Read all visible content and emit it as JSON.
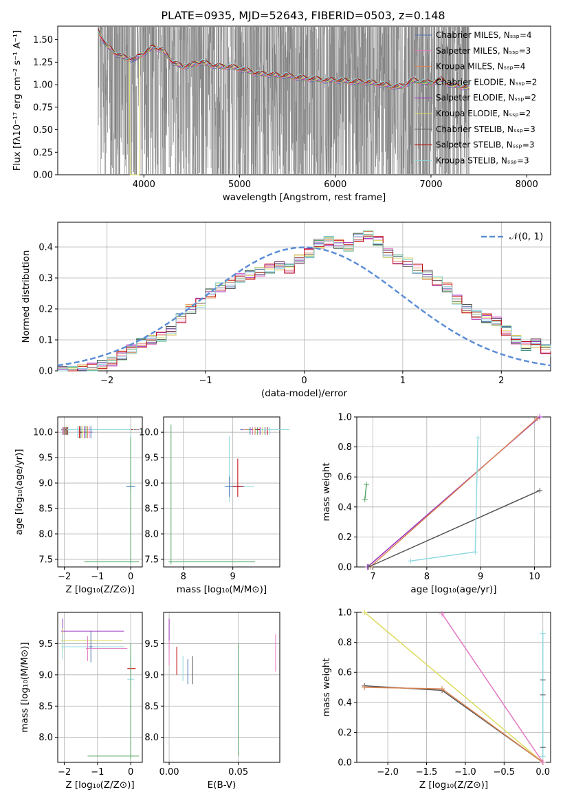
{
  "title": "PLATE=0935, MJD=52643, FIBERID=0503, z=0.148",
  "palette": {
    "chabrier_miles": "#4c72b0",
    "salpeter_miles": "#e377c2",
    "kroupa_miles": "#dd8452",
    "chabrier_elodie": "#55a868",
    "salpeter_elodie": "#9b30c0",
    "kroupa_elodie": "#dbdb5d",
    "chabrier_stelib": "#555555",
    "salpeter_stelib": "#c00000",
    "kroupa_stelib": "#8fd8e0",
    "data_spectrum": "#808080",
    "normal_curve": "#5b8dd6"
  },
  "chart_data": [
    {
      "id": "spectrum",
      "type": "line",
      "xlabel": "wavelength [Angstrom, rest frame]",
      "ylabel": "Flux [fλ10⁻¹⁷ erg cm⁻² s⁻¹ A⁻¹]",
      "xlim": [
        3100,
        8250
      ],
      "ylim": [
        0,
        1.65
      ],
      "xticks": [
        4000,
        5000,
        6000,
        7000,
        8000
      ],
      "yticks": [
        "0.00",
        "0.25",
        "0.50",
        "0.75",
        "1.00",
        "1.25",
        "1.50"
      ],
      "data_range": [
        3520,
        7400
      ],
      "legend": [
        "Chabrier MILES, Nₛₛₚ=4",
        "Salpeter MILES, Nₛₛₚ=3",
        "Kroupa MILES, Nₛₛₚ=4",
        "Chabrier ELODIE, Nₛₛₚ=2",
        "Salpeter ELODIE, Nₛₛₚ=2",
        "Kroupa ELODIE, Nₛₛₚ=2",
        "Chabrier STELIB, Nₛₛₚ=3",
        "Salpeter STELIB, Nₛₛₚ=3",
        "Kroupa STELIB, Nₛₛₚ=3"
      ],
      "model_curve": {
        "x": [
          3520,
          3600,
          3700,
          3800,
          3900,
          4000,
          4100,
          4200,
          4300,
          4400,
          4500,
          4600,
          4700,
          4800,
          4900,
          5000,
          5100,
          5200,
          5300,
          5400,
          5500,
          5600,
          5700,
          5800,
          5900,
          6000,
          6100,
          6200,
          6300,
          6400,
          6500,
          6600,
          6700,
          6800,
          6900,
          7000,
          7100,
          7200,
          7300,
          7400
        ],
        "y": [
          1.6,
          1.45,
          1.35,
          1.3,
          1.28,
          1.35,
          1.42,
          1.38,
          1.25,
          1.2,
          1.22,
          1.25,
          1.22,
          1.2,
          1.2,
          1.18,
          1.15,
          1.12,
          1.12,
          1.1,
          1.1,
          1.08,
          1.07,
          1.06,
          1.05,
          1.05,
          1.04,
          1.03,
          1.03,
          1.02,
          1.0,
          0.98,
          0.98,
          1.05,
          1.03,
          1.02,
          1.06,
          1.0,
          0.98,
          0.97
        ]
      }
    },
    {
      "id": "residuals",
      "type": "line",
      "xlabel": "(data-model)/error",
      "ylabel": "Normed distribution",
      "xlim": [
        -2.5,
        2.5
      ],
      "ylim": [
        0,
        0.48
      ],
      "xticks": [
        "−2",
        "−1",
        "0",
        "1",
        "2"
      ],
      "yticks": [
        "0.0",
        "0.1",
        "0.2",
        "0.3",
        "0.4"
      ],
      "bin_width": 0.1,
      "bin_start": -2.5,
      "histogram": [
        0.0,
        0.0,
        0.005,
        0.01,
        0.02,
        0.03,
        0.05,
        0.07,
        0.09,
        0.1,
        0.11,
        0.13,
        0.17,
        0.2,
        0.22,
        0.25,
        0.27,
        0.28,
        0.3,
        0.31,
        0.32,
        0.33,
        0.34,
        0.33,
        0.36,
        0.38,
        0.41,
        0.42,
        0.41,
        0.4,
        0.43,
        0.44,
        0.42,
        0.38,
        0.36,
        0.35,
        0.33,
        0.31,
        0.29,
        0.27,
        0.23,
        0.2,
        0.18,
        0.17,
        0.16,
        0.13,
        0.1,
        0.08,
        0.09,
        0.07,
        0.06
      ],
      "legend": "𝒩(0, 1)"
    },
    {
      "id": "age-vs-z",
      "type": "scatter",
      "xlabel": "Z [log₁₀(Z/Z⊙)]",
      "ylabel": "age  [log₁₀(age/yr)]",
      "xlim": [
        -2.2,
        0.35
      ],
      "ylim": [
        7.35,
        10.3
      ],
      "xticks": [
        "−2",
        "−1",
        "0"
      ],
      "yticks": [
        "7.5",
        "8.0",
        "8.5",
        "9.0",
        "9.5",
        "10.0"
      ]
    },
    {
      "id": "age-vs-mass",
      "type": "scatter",
      "xlabel": "mass [log₁₀(M/M⊙)]",
      "xlim": [
        7.6,
        9.95
      ],
      "ylim": [
        7.35,
        10.3
      ],
      "xticks": [
        "8",
        "9"
      ],
      "yticks": [
        "7.5",
        "8.0",
        "8.5",
        "9.0",
        "9.5",
        "10.0"
      ]
    },
    {
      "id": "weight-vs-age",
      "type": "line",
      "xlabel": "age  [log₁₀(age/yr)]",
      "ylabel": "mass weight",
      "xlim": [
        6.7,
        10.3
      ],
      "ylim": [
        0,
        1.0
      ],
      "xticks": [
        "7",
        "8",
        "9",
        "10"
      ],
      "yticks": [
        "0.0",
        "0.2",
        "0.4",
        "0.6",
        "0.8",
        "1.0"
      ]
    },
    {
      "id": "mass-vs-z",
      "type": "scatter",
      "xlabel": "Z [log₁₀(Z/Z⊙)]",
      "ylabel": "mass [log₁₀(M/M⊙)]",
      "xlim": [
        -2.2,
        0.35
      ],
      "ylim": [
        7.6,
        10.0
      ],
      "xticks": [
        "−2",
        "−1",
        "0"
      ],
      "yticks": [
        "8.0",
        "8.5",
        "9.0",
        "9.5"
      ]
    },
    {
      "id": "mass-vs-ebv",
      "type": "scatter",
      "xlabel": "E(B-V)",
      "xlim": [
        -0.004,
        0.08
      ],
      "ylim": [
        7.6,
        10.0
      ],
      "xticks": [
        "0.00",
        "0.05"
      ],
      "yticks": [
        "8.0",
        "8.5",
        "9.0",
        "9.5"
      ]
    },
    {
      "id": "weight-vs-z",
      "type": "line",
      "xlabel": "Z [log₁₀(Z/Z⊙)]",
      "ylabel": "mass weight",
      "xlim": [
        -2.4,
        0.1
      ],
      "ylim": [
        0,
        1.0
      ],
      "xticks": [
        "−2.0",
        "−1.5",
        "−1.0",
        "−0.5",
        "0.0"
      ],
      "yticks": [
        "0.0",
        "0.2",
        "0.4",
        "0.6",
        "0.8",
        "1.0"
      ]
    }
  ]
}
